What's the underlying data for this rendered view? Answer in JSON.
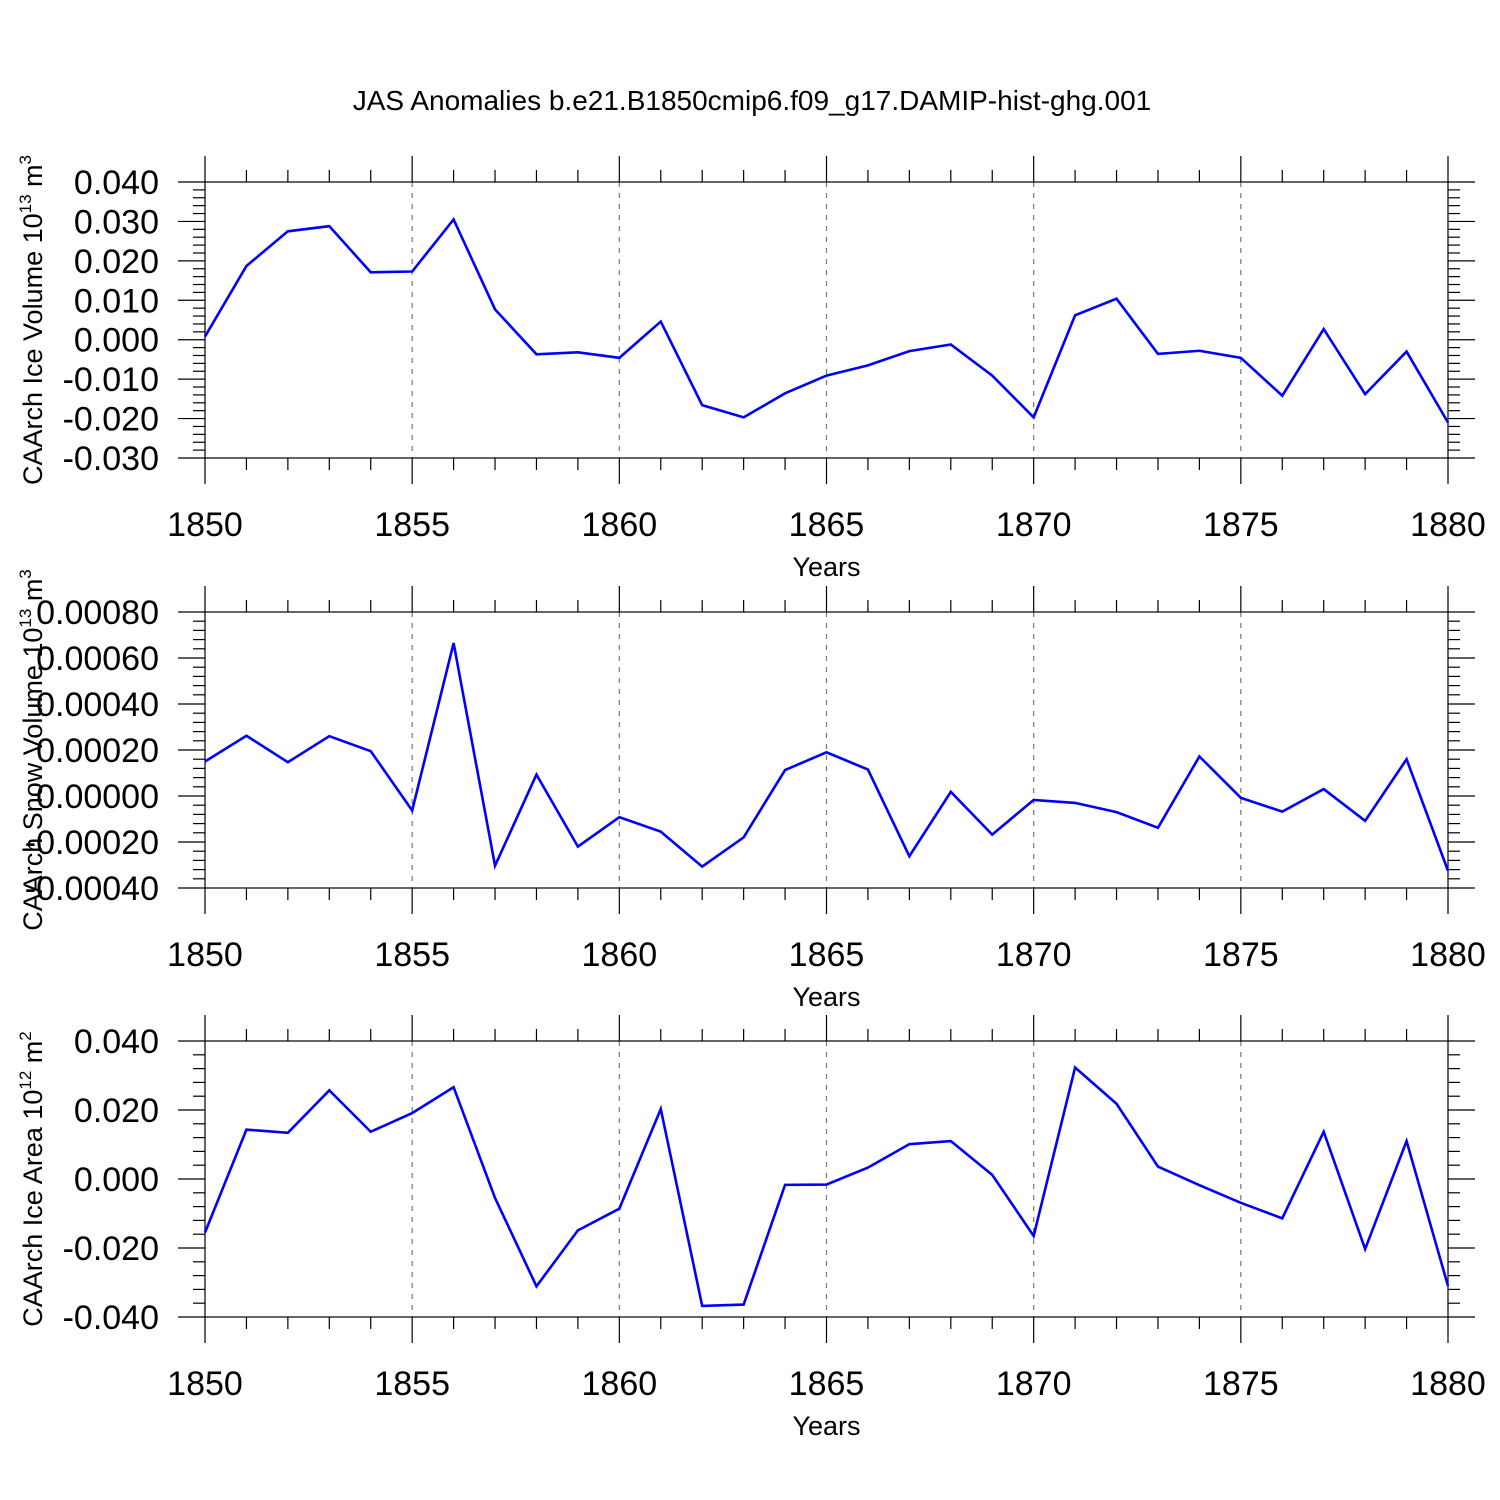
{
  "title": "JAS Anomalies b.e21.B1850cmip6.f09_g17.DAMIP-hist-ghg.001",
  "colors": {
    "line": "#0000ff",
    "axes": "#000000",
    "grid": "#777777"
  },
  "chart_data": [
    {
      "type": "line",
      "ylabel": "CAArch Ice Volume 10",
      "ylabel_sup": "13",
      "ylabel_unit": "m",
      "ylabel_unit_sup": "3",
      "xlabel": "Years",
      "xlim": [
        1850,
        1880
      ],
      "ylim": [
        -0.03,
        0.04
      ],
      "x_ticks": [
        1850,
        1855,
        1860,
        1865,
        1870,
        1875,
        1880
      ],
      "y_ticks": [
        -0.03,
        -0.02,
        -0.01,
        0.0,
        0.01,
        0.02,
        0.03,
        0.04
      ],
      "y_tick_labels": [
        "-0.030",
        "-0.020",
        "-0.010",
        "0.000",
        "0.010",
        "0.020",
        "0.030",
        "0.040"
      ],
      "grid": "vertical dashed at major x ticks",
      "x": [
        1850,
        1851,
        1852,
        1853,
        1854,
        1855,
        1856,
        1857,
        1858,
        1859,
        1860,
        1861,
        1862,
        1863,
        1864,
        1865,
        1866,
        1867,
        1868,
        1869,
        1870,
        1871,
        1872,
        1873,
        1874,
        1875,
        1876,
        1877,
        1878,
        1879,
        1880
      ],
      "values": [
        0.0008,
        0.0187,
        0.0275,
        0.0288,
        0.0171,
        0.0173,
        0.0305,
        0.0077,
        -0.0037,
        -0.0032,
        -0.0046,
        0.0046,
        -0.0166,
        -0.0197,
        -0.0136,
        -0.0091,
        -0.0065,
        -0.0029,
        -0.0012,
        -0.0091,
        -0.0197,
        0.0062,
        0.0104,
        -0.0036,
        -0.0028,
        -0.0046,
        -0.0142,
        0.0027,
        -0.0138,
        -0.003,
        -0.021
      ]
    },
    {
      "type": "line",
      "ylabel": "CAArch Snow Volume 10",
      "ylabel_sup": "13",
      "ylabel_unit": "m",
      "ylabel_unit_sup": "3",
      "xlabel": "Years",
      "xlim": [
        1850,
        1880
      ],
      "ylim": [
        -0.0004,
        0.0008
      ],
      "x_ticks": [
        1850,
        1855,
        1860,
        1865,
        1870,
        1875,
        1880
      ],
      "y_ticks": [
        -0.0004,
        -0.0002,
        0.0,
        0.0002,
        0.0004,
        0.0006,
        0.0008
      ],
      "y_tick_labels": [
        "-0.00040",
        "-0.00020",
        "0.00000",
        "0.00020",
        "0.00040",
        "0.00060",
        "0.00080"
      ],
      "grid": "vertical dashed at major x ticks",
      "x": [
        1850,
        1851,
        1852,
        1853,
        1854,
        1855,
        1856,
        1857,
        1858,
        1859,
        1860,
        1861,
        1862,
        1863,
        1864,
        1865,
        1866,
        1867,
        1868,
        1869,
        1870,
        1871,
        1872,
        1873,
        1874,
        1875,
        1876,
        1877,
        1878,
        1879,
        1880
      ],
      "values": [
        0.00015,
        0.000262,
        0.000147,
        0.00026,
        0.000195,
        -6.3e-05,
        0.000665,
        -0.000303,
        9.3e-05,
        -0.00022,
        -9.2e-05,
        -0.000155,
        -0.000307,
        -0.00018,
        0.000113,
        0.00019,
        0.000115,
        -0.000262,
        1.8e-05,
        -0.000168,
        -1.7e-05,
        -3e-05,
        -7e-05,
        -0.000138,
        0.000172,
        -8e-06,
        -6.8e-05,
        3e-05,
        -0.000108,
        0.00016,
        -0.000325
      ]
    },
    {
      "type": "line",
      "ylabel": "CAArch Ice Area 10",
      "ylabel_sup": "12",
      "ylabel_unit": "m",
      "ylabel_unit_sup": "2",
      "xlabel": "Years",
      "xlim": [
        1850,
        1880
      ],
      "ylim": [
        -0.04,
        0.04
      ],
      "x_ticks": [
        1850,
        1855,
        1860,
        1865,
        1870,
        1875,
        1880
      ],
      "y_ticks": [
        -0.04,
        -0.02,
        0.0,
        0.02,
        0.04
      ],
      "y_tick_labels": [
        "-0.040",
        "-0.020",
        "0.000",
        "0.020",
        "0.040"
      ],
      "grid": "vertical dashed at major x ticks",
      "x": [
        1850,
        1851,
        1852,
        1853,
        1854,
        1855,
        1856,
        1857,
        1858,
        1859,
        1860,
        1861,
        1862,
        1863,
        1864,
        1865,
        1866,
        1867,
        1868,
        1869,
        1870,
        1871,
        1872,
        1873,
        1874,
        1875,
        1876,
        1877,
        1878,
        1879,
        1880
      ],
      "values": [
        -0.0155,
        0.0143,
        0.0134,
        0.0257,
        0.0137,
        0.0191,
        0.0266,
        -0.0055,
        -0.0311,
        -0.0149,
        -0.0086,
        0.0203,
        -0.0368,
        -0.0364,
        -0.0017,
        -0.0016,
        0.0033,
        0.0101,
        0.011,
        0.0012,
        -0.0165,
        0.0323,
        0.0218,
        0.0036,
        -0.0018,
        -0.0069,
        -0.0114,
        0.0137,
        -0.0203,
        0.011,
        -0.031
      ]
    }
  ]
}
